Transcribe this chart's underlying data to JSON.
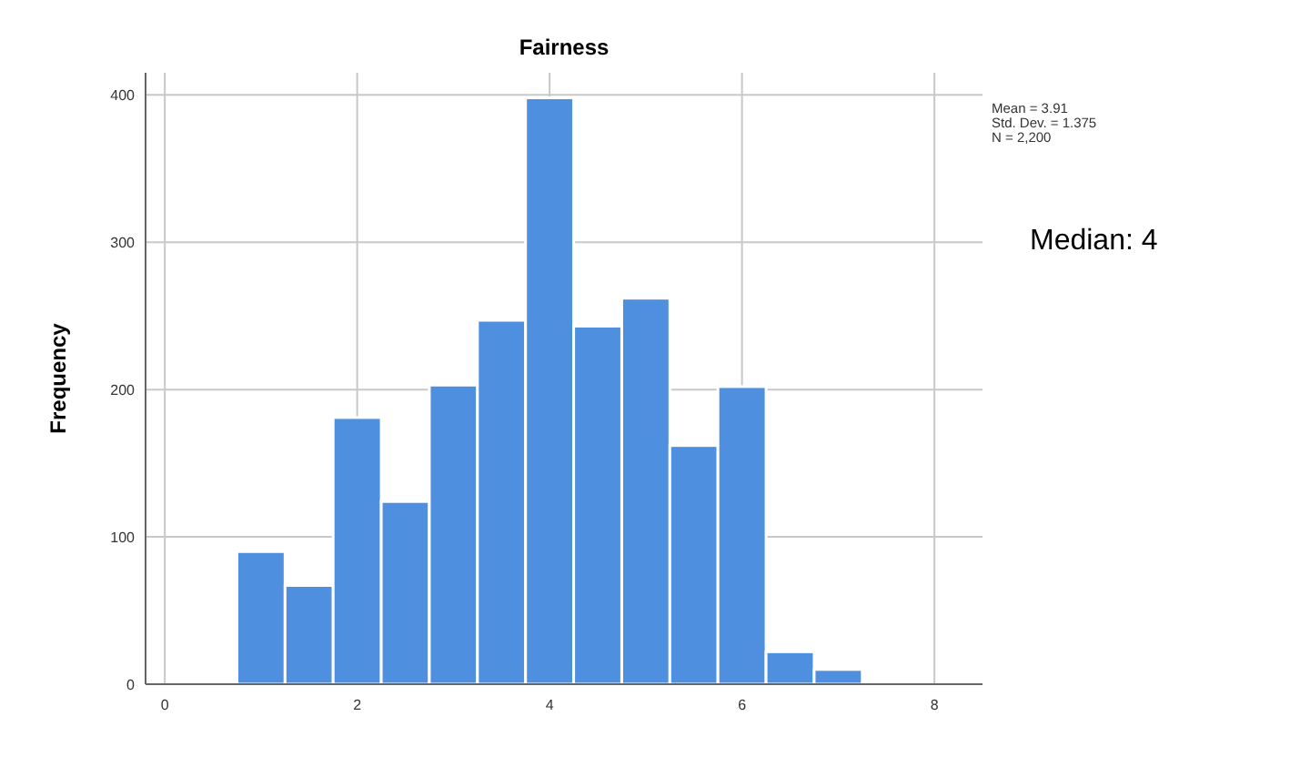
{
  "chart_data": {
    "type": "histogram",
    "title": "Fairness",
    "ylabel": "Frequency",
    "bins": [
      0.75,
      1.25,
      1.75,
      2.25,
      2.75,
      3.25,
      3.75,
      4.25,
      4.75,
      5.25,
      5.75,
      6.25,
      6.75,
      7.25
    ],
    "values": [
      90,
      67,
      181,
      124,
      203,
      247,
      398,
      243,
      262,
      162,
      202,
      22,
      10
    ],
    "color": "#4f8fe0",
    "xlim": [
      -0.2,
      8.5
    ],
    "ylim": [
      0,
      415
    ],
    "xticks": [
      0,
      2,
      4,
      6,
      8
    ],
    "yticks": [
      0,
      100,
      200,
      300,
      400
    ],
    "grid": true,
    "annotations": [
      "Mean = 3.91",
      "Std. Dev. = 1.375",
      "N = 2,200",
      "Median: 4"
    ]
  }
}
